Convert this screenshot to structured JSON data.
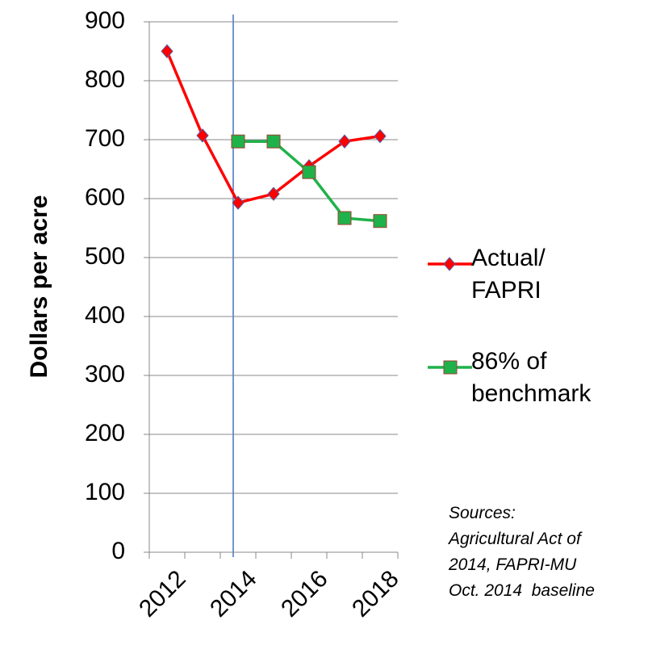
{
  "chart_data": {
    "type": "line",
    "categories": [
      "2012",
      null,
      "2014",
      null,
      "2016",
      null,
      "2018"
    ],
    "series": [
      {
        "name": "Actual/ FAPRI",
        "color": "#ff0000",
        "marker": "diamond",
        "values": [
          850,
          707,
          593,
          608,
          655,
          697,
          706
        ]
      },
      {
        "name": "86% of benchmark",
        "color": "#1fb24a",
        "marker": "square",
        "values": [
          null,
          null,
          697,
          697,
          645,
          567,
          562
        ]
      }
    ],
    "y_label": "Dollars per acre",
    "ylim": [
      0,
      900
    ],
    "yticks": [
      0,
      100,
      200,
      300,
      400,
      500,
      600,
      700,
      800,
      900
    ],
    "grid": true,
    "legend": "right",
    "annotation": [
      "Sources:",
      "Agricultural Act of",
      "2014, FAPRI-MU",
      "Oct. 2014  baseline"
    ]
  }
}
